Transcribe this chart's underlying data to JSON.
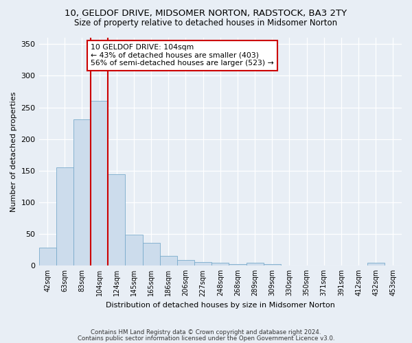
{
  "title_line1": "10, GELDOF DRIVE, MIDSOMER NORTON, RADSTOCK, BA3 2TY",
  "title_line2": "Size of property relative to detached houses in Midsomer Norton",
  "xlabel": "Distribution of detached houses by size in Midsomer Norton",
  "ylabel": "Number of detached properties",
  "categories": [
    "42sqm",
    "63sqm",
    "83sqm",
    "104sqm",
    "124sqm",
    "145sqm",
    "165sqm",
    "186sqm",
    "206sqm",
    "227sqm",
    "248sqm",
    "268sqm",
    "289sqm",
    "309sqm",
    "330sqm",
    "350sqm",
    "371sqm",
    "391sqm",
    "412sqm",
    "432sqm",
    "453sqm"
  ],
  "values": [
    28,
    155,
    231,
    260,
    144,
    49,
    36,
    16,
    9,
    6,
    5,
    3,
    5,
    3,
    0,
    0,
    0,
    0,
    0,
    5,
    0
  ],
  "bar_color": "#ccdcec",
  "bar_edgecolor": "#7aabcc",
  "highlight_index": 3,
  "highlight_color": "#cc0000",
  "ylim": [
    0,
    360
  ],
  "yticks": [
    0,
    50,
    100,
    150,
    200,
    250,
    300,
    350
  ],
  "annotation_text": "10 GELDOF DRIVE: 104sqm\n← 43% of detached houses are smaller (403)\n56% of semi-detached houses are larger (523) →",
  "annotation_box_color": "#ffffff",
  "annotation_box_edgecolor": "#cc0000",
  "footer_line1": "Contains HM Land Registry data © Crown copyright and database right 2024.",
  "footer_line2": "Contains public sector information licensed under the Open Government Licence v3.0.",
  "bg_color": "#e8eef5",
  "plot_bg_color": "#e8eef5",
  "title_fontsize": 9.5,
  "subtitle_fontsize": 8.5,
  "xlabel_fontsize": 8,
  "ylabel_fontsize": 8
}
